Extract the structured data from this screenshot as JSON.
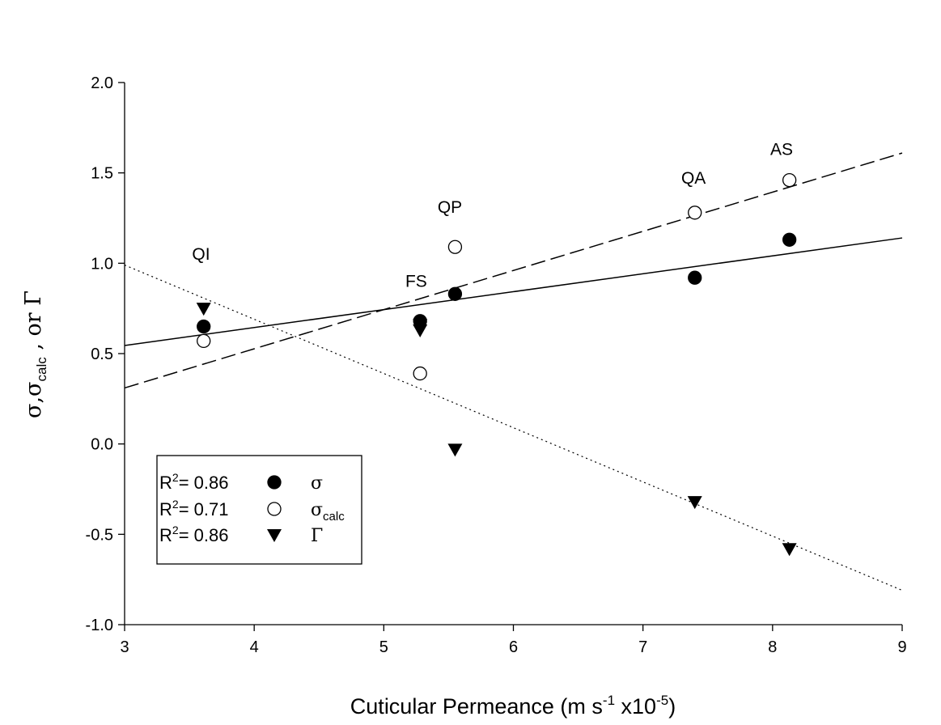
{
  "chart_data": {
    "type": "scatter",
    "title": "",
    "xlabel": "Cuticular Permeance (m s",
    "xlabel_sup": "-1",
    "xlabel_tail": " x10",
    "xlabel_sup2": "-5",
    "xlabel_end": ")",
    "ylabel_parts": [
      "σ,σ",
      "calc",
      " , or Γ"
    ],
    "xlim": [
      3,
      9
    ],
    "ylim": [
      -1.0,
      2.0
    ],
    "xticks": [
      3,
      4,
      5,
      6,
      7,
      8,
      9
    ],
    "xtick_labels": [
      "3",
      "4",
      "5",
      "6",
      "7",
      "8",
      "9"
    ],
    "yticks": [
      -1.0,
      -0.5,
      0.0,
      0.5,
      1.0,
      1.5,
      2.0
    ],
    "ytick_labels": [
      "-1.0",
      "-0.5",
      "0.0",
      "0.5",
      "1.0",
      "1.5",
      "2.0"
    ],
    "grid": false,
    "legend_position": "bottom-left",
    "series": [
      {
        "name": "σ",
        "marker": "filled-circle",
        "line_style": "solid",
        "r2_label": "R",
        "r2_sup": "2",
        "r2_value": "= 0.86",
        "x": [
          3.61,
          5.28,
          5.55,
          7.4,
          8.13
        ],
        "y": [
          0.65,
          0.68,
          0.83,
          0.92,
          1.13
        ],
        "fit": [
          [
            3,
            0.545
          ],
          [
            9,
            1.14
          ]
        ]
      },
      {
        "name": "σ",
        "name_sub": "calc",
        "marker": "open-circle",
        "line_style": "dashed",
        "r2_label": "R",
        "r2_sup": "2",
        "r2_value": "= 0.71",
        "x": [
          3.61,
          5.28,
          5.55,
          7.4,
          8.13
        ],
        "y": [
          0.57,
          0.39,
          1.09,
          1.28,
          1.46
        ],
        "fit": [
          [
            3,
            0.31
          ],
          [
            9,
            1.61
          ]
        ]
      },
      {
        "name": "Γ",
        "marker": "filled-triangle-down",
        "line_style": "dotted",
        "r2_label": "R",
        "r2_sup": "2",
        "r2_value": "= 0.86",
        "x": [
          3.61,
          5.28,
          5.28,
          5.55,
          7.4,
          8.13
        ],
        "y": [
          0.75,
          0.66,
          0.63,
          -0.03,
          -0.32,
          -0.58
        ],
        "fit": [
          [
            3,
            0.99
          ],
          [
            9,
            -0.81
          ]
        ]
      }
    ],
    "annotations": [
      {
        "text": "QI",
        "x": 3.59,
        "y": 1.02
      },
      {
        "text": "FS",
        "x": 5.25,
        "y": 0.87
      },
      {
        "text": "QP",
        "x": 5.51,
        "y": 1.28
      },
      {
        "text": "QA",
        "x": 7.39,
        "y": 1.44
      },
      {
        "text": "AS",
        "x": 8.07,
        "y": 1.6
      }
    ]
  }
}
